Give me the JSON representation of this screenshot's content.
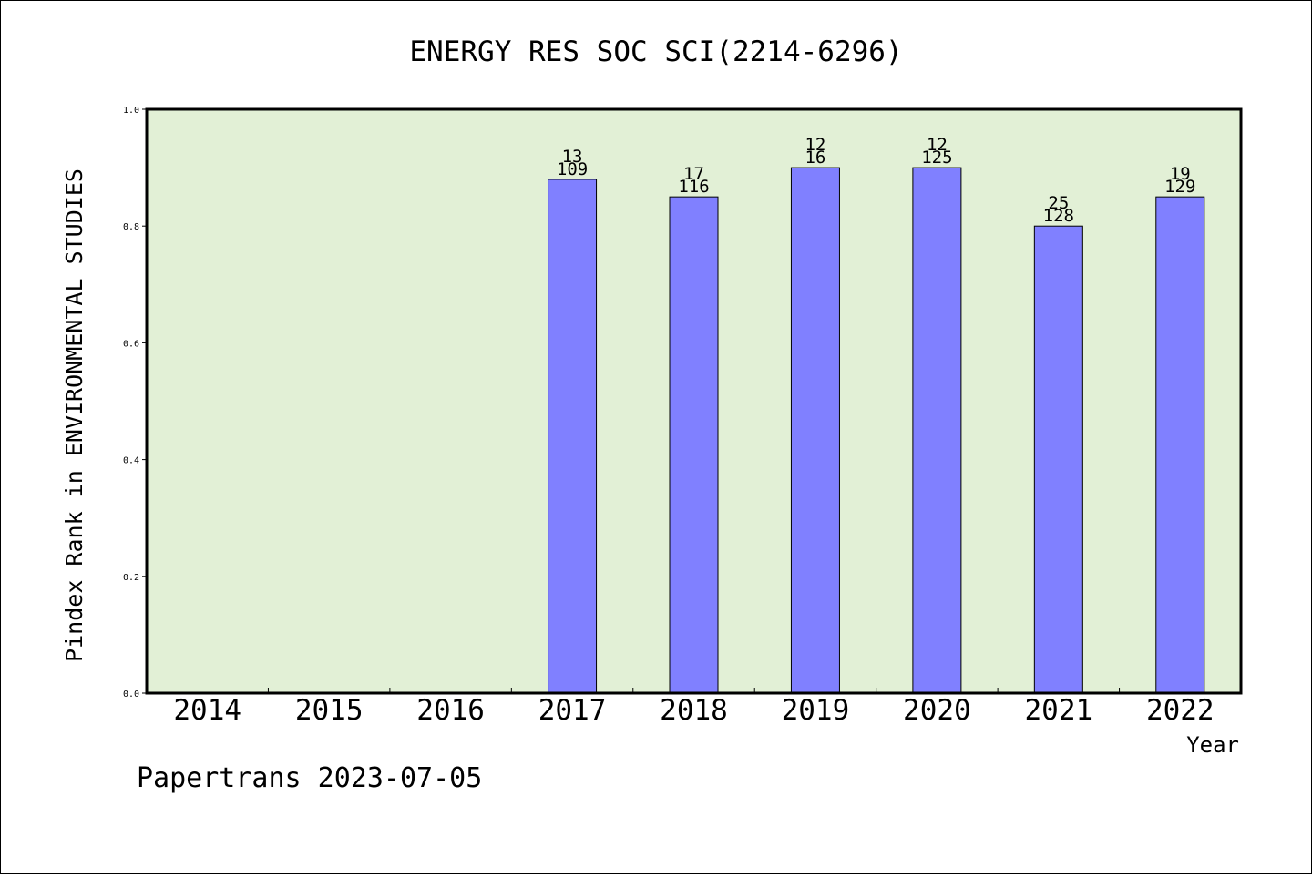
{
  "chart_data": {
    "type": "bar",
    "title": "ENERGY RES SOC SCI(2214-6296)",
    "ylabel": "Pindex Rank in ENVIRONMENTAL STUDIES",
    "xlabel": "Year",
    "ylim": [
      0,
      1.0
    ],
    "yticks": [
      "0.0",
      "0.2",
      "0.4",
      "0.6",
      "0.8",
      "1.0"
    ],
    "categories": [
      "2014",
      "2015",
      "2016",
      "2017",
      "2018",
      "2019",
      "2020",
      "2021",
      "2022"
    ],
    "values": [
      null,
      null,
      null,
      0.88,
      0.85,
      0.9,
      0.9,
      0.8,
      0.85
    ],
    "labels_top": [
      "",
      "",
      "",
      "13",
      "17",
      "12",
      "12",
      "25",
      "19"
    ],
    "labels_bottom": [
      "",
      "",
      "",
      "109",
      "116",
      "16",
      "125",
      "128",
      "129"
    ],
    "grid": false,
    "colors": {
      "plot_bg": "#e2f0d6",
      "bar": "#8080ff",
      "bar_edge": "#000000"
    }
  },
  "footer": {
    "text": "Papertrans 2023-07-05"
  }
}
